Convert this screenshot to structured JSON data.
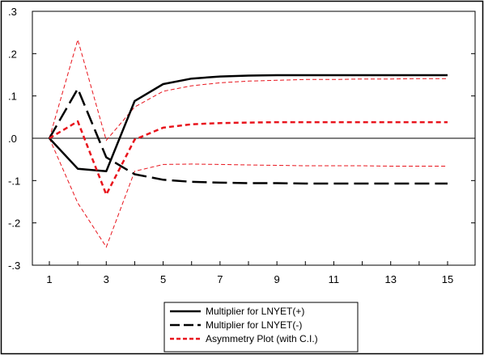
{
  "chart_data": {
    "type": "line",
    "title": "",
    "xlabel": "",
    "ylabel": "",
    "x": [
      1,
      2,
      3,
      4,
      5,
      6,
      7,
      8,
      9,
      10,
      11,
      12,
      13,
      14,
      15
    ],
    "xticks": [
      1,
      3,
      5,
      7,
      9,
      11,
      13,
      15
    ],
    "xtick_labels": [
      "1",
      "3",
      "5",
      "7",
      "9",
      "11",
      "13",
      "15"
    ],
    "ylim": [
      -0.3,
      0.3
    ],
    "yticks": [
      0.3,
      0.2,
      0.1,
      0.0,
      -0.1,
      -0.2,
      -0.3
    ],
    "ytick_labels": [
      ".3",
      ".2",
      ".1",
      ".0",
      "-.1",
      "-.2",
      "-.3"
    ],
    "grid": false,
    "zero_line": true,
    "legend_position": "bottom",
    "series": [
      {
        "name": "Multiplier for LNYET(+)",
        "color": "#000000",
        "style": "solid",
        "values": [
          0.0,
          -0.072,
          -0.078,
          0.088,
          0.128,
          0.141,
          0.146,
          0.148,
          0.149,
          0.149,
          0.149,
          0.149,
          0.149,
          0.149,
          0.149
        ]
      },
      {
        "name": "Multiplier for LNYET(-)",
        "color": "#000000",
        "style": "longdash",
        "values": [
          0.0,
          0.117,
          -0.045,
          -0.085,
          -0.098,
          -0.103,
          -0.105,
          -0.106,
          -0.106,
          -0.107,
          -0.107,
          -0.107,
          -0.107,
          -0.107,
          -0.107
        ]
      },
      {
        "name": "Asymmetry Plot (with C.I.)",
        "color": "#e8141c",
        "style": "dash",
        "values": [
          0.0,
          0.04,
          -0.133,
          -0.003,
          0.025,
          0.033,
          0.036,
          0.037,
          0.038,
          0.038,
          0.038,
          0.038,
          0.038,
          0.038,
          0.038
        ]
      }
    ],
    "confidence_band": {
      "color": "#e8141c",
      "upper": [
        0.0,
        0.233,
        -0.005,
        0.074,
        0.111,
        0.124,
        0.131,
        0.135,
        0.137,
        0.139,
        0.139,
        0.14,
        0.14,
        0.141,
        0.141
      ],
      "lower": [
        0.0,
        -0.153,
        -0.257,
        -0.078,
        -0.062,
        -0.061,
        -0.062,
        -0.063,
        -0.064,
        -0.065,
        -0.065,
        -0.065,
        -0.066,
        -0.066,
        -0.066
      ]
    }
  }
}
